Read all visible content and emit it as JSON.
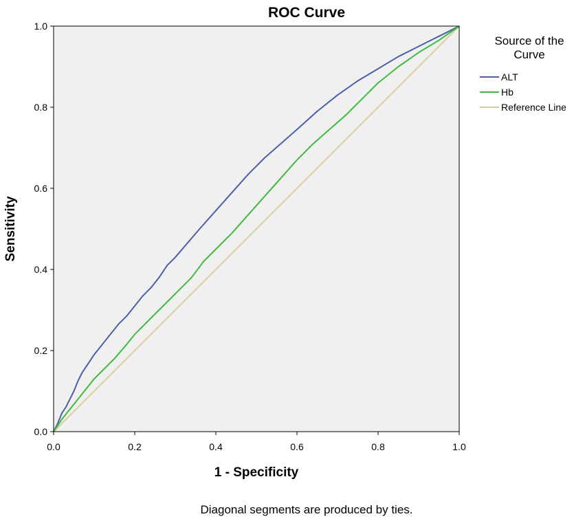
{
  "chart_data": {
    "type": "line",
    "title": "ROC Curve",
    "xlabel": "1 - Specificity",
    "ylabel": "Sensitivity",
    "xlim": [
      0,
      1
    ],
    "ylim": [
      0,
      1
    ],
    "xticks": [
      "0.0",
      "0.2",
      "0.4",
      "0.6",
      "0.8",
      "1.0"
    ],
    "yticks": [
      "0.0",
      "0.2",
      "0.4",
      "0.6",
      "0.8",
      "1.0"
    ],
    "grid": false,
    "background": "#f0f0f0",
    "legend": {
      "title_line1": "Source of the",
      "title_line2": "Curve",
      "placement": "right"
    },
    "series": [
      {
        "name": "ALT",
        "color": "#4a5fa8",
        "x": [
          0,
          0.01,
          0.02,
          0.03,
          0.04,
          0.05,
          0.06,
          0.07,
          0.08,
          0.1,
          0.12,
          0.14,
          0.16,
          0.18,
          0.2,
          0.22,
          0.24,
          0.26,
          0.28,
          0.3,
          0.33,
          0.36,
          0.4,
          0.44,
          0.48,
          0.52,
          0.56,
          0.6,
          0.65,
          0.7,
          0.75,
          0.8,
          0.85,
          0.9,
          0.95,
          1.0
        ],
        "y": [
          0,
          0.02,
          0.045,
          0.06,
          0.08,
          0.1,
          0.125,
          0.145,
          0.16,
          0.19,
          0.215,
          0.24,
          0.265,
          0.285,
          0.31,
          0.335,
          0.355,
          0.38,
          0.41,
          0.43,
          0.465,
          0.5,
          0.545,
          0.59,
          0.635,
          0.675,
          0.71,
          0.745,
          0.79,
          0.83,
          0.865,
          0.895,
          0.925,
          0.95,
          0.975,
          1.0
        ]
      },
      {
        "name": "Hb",
        "color": "#3dbb3d",
        "x": [
          0,
          0.02,
          0.04,
          0.06,
          0.08,
          0.1,
          0.12,
          0.15,
          0.18,
          0.2,
          0.23,
          0.26,
          0.3,
          0.34,
          0.37,
          0.4,
          0.44,
          0.48,
          0.52,
          0.56,
          0.6,
          0.64,
          0.68,
          0.72,
          0.76,
          0.8,
          0.85,
          0.9,
          0.95,
          1.0
        ],
        "y": [
          0,
          0.03,
          0.055,
          0.08,
          0.105,
          0.13,
          0.15,
          0.18,
          0.215,
          0.24,
          0.27,
          0.3,
          0.34,
          0.38,
          0.42,
          0.45,
          0.49,
          0.535,
          0.58,
          0.625,
          0.67,
          0.71,
          0.745,
          0.78,
          0.82,
          0.86,
          0.9,
          0.935,
          0.965,
          1.0
        ]
      },
      {
        "name": "Reference Line",
        "color": "#d8cca0",
        "x": [
          0,
          1
        ],
        "y": [
          0,
          1
        ]
      }
    ],
    "footnote": "Diagonal segments are produced by ties."
  }
}
